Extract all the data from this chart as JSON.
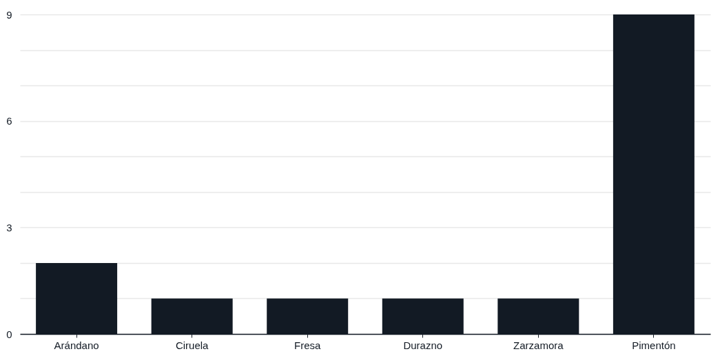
{
  "chart_data": {
    "type": "bar",
    "categories": [
      "Arándano",
      "Ciruela",
      "Fresa",
      "Durazno",
      "Zarzamora",
      "Pimentón"
    ],
    "values": [
      2,
      1,
      1,
      1,
      1,
      9
    ],
    "color": "#121a24",
    "ylim": [
      0,
      9
    ],
    "yticks": [
      0,
      {
        "value": 1,
        "label": null
      },
      {
        "value": 2,
        "label": null
      },
      3,
      {
        "value": 4,
        "label": null
      },
      {
        "value": 5,
        "label": null
      },
      6,
      {
        "value": 7,
        "label": null
      },
      {
        "value": 8,
        "label": null
      },
      9
    ],
    "grid": "y"
  }
}
